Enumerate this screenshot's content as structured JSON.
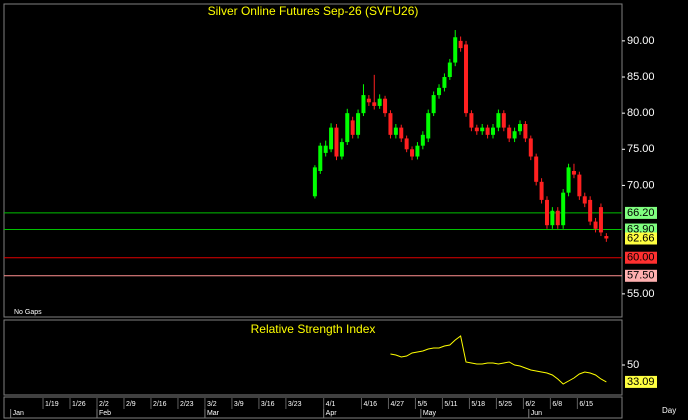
{
  "chart_data": [
    {
      "type": "candlestick",
      "title": "Silver Online Futures Sep-26 (SVFU26)",
      "note": "No Gaps",
      "x": [
        50,
        51,
        52,
        53,
        54,
        55,
        56,
        57,
        58,
        59,
        60,
        61,
        62,
        63,
        64,
        65,
        66,
        67,
        68,
        69,
        70,
        71,
        72,
        73,
        74,
        75,
        76,
        77,
        78,
        79,
        80,
        81,
        82,
        83,
        84,
        85,
        86,
        87,
        88,
        89,
        90,
        91,
        92,
        93,
        94,
        95,
        96,
        97,
        98,
        99,
        100,
        101,
        102,
        103,
        104
      ],
      "open": [
        68.5,
        72,
        74.5,
        75,
        78,
        74,
        76,
        79,
        77,
        80,
        82,
        81.5,
        81,
        82,
        80,
        77,
        78,
        76.5,
        75,
        74,
        75.5,
        76.5,
        80,
        82.5,
        83.5,
        85,
        87,
        90,
        89.5,
        80,
        78,
        77.5,
        78,
        77,
        78,
        80,
        78,
        76.5,
        77.5,
        78.5,
        76.5,
        74,
        70.5,
        68,
        64.5,
        66.5,
        64.5,
        69,
        72,
        71.5,
        68.5,
        68,
        65,
        67,
        63
      ],
      "high": [
        72.8,
        75.9,
        76.2,
        78.6,
        78.5,
        76.5,
        80.6,
        79.5,
        80.5,
        84,
        82.5,
        85.3,
        82.6,
        82.4,
        80.4,
        78.5,
        78.4,
        76.9,
        75.4,
        76,
        77.5,
        80.5,
        83,
        84,
        85.5,
        87.5,
        91.5,
        90.6,
        90,
        80.4,
        78.4,
        78.5,
        78.4,
        78.5,
        80.5,
        80.4,
        78.4,
        78,
        79,
        78.9,
        76.9,
        74.4,
        71,
        68.5,
        67,
        67,
        69.5,
        73,
        73,
        71.9,
        69,
        68.5,
        65.5,
        67.5,
        63.4
      ],
      "low": [
        68.2,
        71.6,
        74,
        74.6,
        73.5,
        73.6,
        75.6,
        76.5,
        76.5,
        79.6,
        81,
        80.5,
        80.6,
        79.5,
        76.5,
        76.5,
        76,
        74.6,
        73.5,
        73.6,
        75,
        76,
        79.6,
        82,
        83,
        84.6,
        86.5,
        88.5,
        79.5,
        77.5,
        77,
        77,
        76.5,
        76.5,
        77.5,
        77.5,
        76,
        76,
        77,
        76,
        73.5,
        70,
        67.5,
        64,
        64,
        64,
        64,
        68.5,
        71,
        68,
        67,
        64.5,
        63.5,
        63,
        62.2
      ],
      "close": [
        72.5,
        75.5,
        75.5,
        78,
        74,
        76,
        80,
        77,
        80,
        82.5,
        81.5,
        81,
        82,
        80,
        77,
        78,
        76.5,
        75,
        74,
        75.5,
        77,
        80,
        82.5,
        83.5,
        85,
        87,
        90.5,
        89,
        80,
        78,
        77.5,
        78,
        77,
        78,
        80,
        78,
        76.5,
        77.5,
        78.5,
        76.5,
        74,
        70.5,
        68,
        64.5,
        66.5,
        64.5,
        69,
        72.5,
        71.5,
        68.5,
        67.5,
        65,
        64,
        63.5,
        62.66
      ],
      "up_color": "#00ff00",
      "down_color": "#ff2020",
      "xlim": [
        -7.6,
        106.9
      ],
      "ylim": [
        51.8,
        95.1
      ],
      "yticks": [
        {
          "value": 55,
          "label": "55.00"
        },
        {
          "value": 70,
          "label": "70.00"
        },
        {
          "value": 75,
          "label": "75.00"
        },
        {
          "value": 80,
          "label": "80.00"
        },
        {
          "value": 85,
          "label": "85.00"
        },
        {
          "value": 90,
          "label": "90.00"
        }
      ],
      "levels": [
        {
          "value": 66.2,
          "label": "66.20",
          "color": "#00c000",
          "label_bg": "#80ff80"
        },
        {
          "value": 63.9,
          "label": "63.90",
          "color": "#00c000",
          "label_bg": "#80ff80"
        },
        {
          "value": 60,
          "label": "60.00",
          "color": "#e00000",
          "label_bg": "#ff3030"
        },
        {
          "value": 57.5,
          "label": "57.50",
          "color": "#ff9090",
          "label_bg": "#ffb0b0"
        }
      ],
      "last_bg": "#ffff40"
    },
    {
      "type": "line",
      "title": "Relative Strength Index",
      "x": [
        64,
        65,
        66,
        67,
        68,
        69,
        70,
        71,
        72,
        73,
        74,
        75,
        76,
        77,
        78,
        79,
        80,
        81,
        82,
        83,
        84,
        85,
        86,
        87,
        88,
        89,
        90,
        91,
        92,
        93,
        94,
        95,
        96,
        97,
        98,
        99,
        100,
        101,
        102,
        103,
        104
      ],
      "values": [
        61,
        60,
        58,
        59,
        62,
        63,
        64,
        66,
        67,
        67,
        69,
        70,
        75,
        79,
        53,
        52,
        51,
        51,
        52,
        52,
        51,
        52,
        53,
        50,
        49,
        47,
        45,
        44,
        43,
        42,
        40,
        36,
        31,
        34,
        37,
        41,
        43,
        42,
        40,
        36,
        33.09
      ],
      "color": "#ffff00",
      "last_bg": "#ffff40",
      "xlim": [
        -7.6,
        106.9
      ],
      "ylim": [
        20,
        95
      ],
      "yticks": [
        50
      ],
      "xlabel": "Day",
      "xticks": [
        {
          "value": 0,
          "label": "1/19"
        },
        {
          "value": 5,
          "label": "1/26"
        },
        {
          "value": 10,
          "label": "2/2"
        },
        {
          "value": 15,
          "label": "2/9"
        },
        {
          "value": 20,
          "label": "2/16"
        },
        {
          "value": 25,
          "label": "2/23"
        },
        {
          "value": 30,
          "label": "3/2"
        },
        {
          "value": 35,
          "label": "3/9"
        },
        {
          "value": 40,
          "label": "3/16"
        },
        {
          "value": 45,
          "label": "3/23"
        },
        {
          "value": 52,
          "label": "4/1"
        },
        {
          "value": 59,
          "label": "4/16"
        },
        {
          "value": 64,
          "label": "4/27"
        },
        {
          "value": 69,
          "label": "5/5"
        },
        {
          "value": 74,
          "label": "5/11"
        },
        {
          "value": 79,
          "label": "5/18"
        },
        {
          "value": 84,
          "label": "5/25"
        },
        {
          "value": 89,
          "label": "6/2"
        },
        {
          "value": 94,
          "label": "6/8"
        },
        {
          "value": 99,
          "label": "6/15"
        }
      ],
      "month_ticks": [
        {
          "value": -6,
          "label": "Jan"
        },
        {
          "value": 10,
          "label": "Feb"
        },
        {
          "value": 30,
          "label": "Mar"
        },
        {
          "value": 52,
          "label": "Apr"
        },
        {
          "value": 70,
          "label": "May"
        },
        {
          "value": 90,
          "label": "Jun"
        }
      ]
    }
  ]
}
